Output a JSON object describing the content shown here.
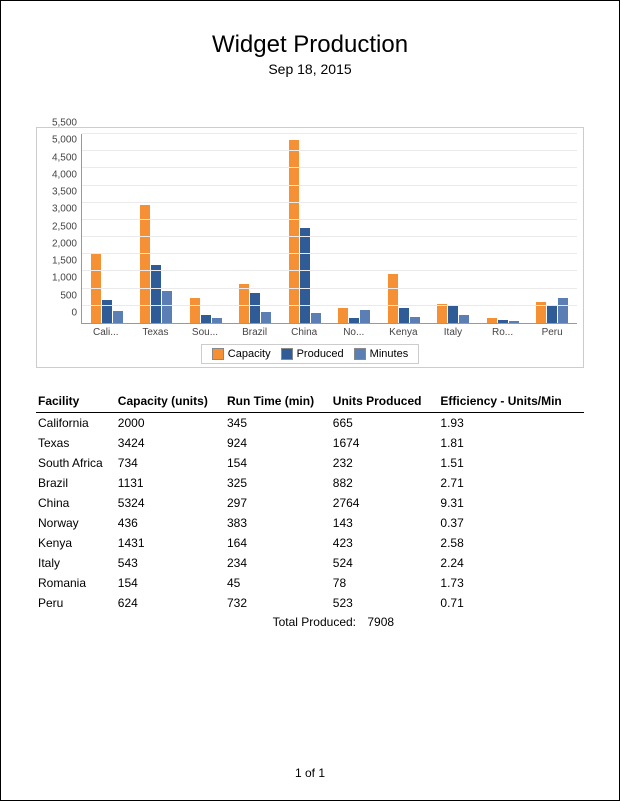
{
  "title": "Widget Production",
  "subtitle": "Sep 18, 2015",
  "chart": {
    "type": "bar",
    "y_max": 5500,
    "y_ticks": [
      0,
      500,
      1000,
      1500,
      2000,
      2500,
      3000,
      3500,
      4000,
      4500,
      5000,
      5500
    ],
    "y_tick_labels": [
      "0",
      "500",
      "1,000",
      "1,500",
      "2,000",
      "2,500",
      "3,000",
      "3,500",
      "4,000",
      "4,500",
      "5,000",
      "5,500"
    ],
    "series": [
      {
        "name": "Capacity",
        "color": "#f59134"
      },
      {
        "name": "Produced",
        "color": "#2f5b96"
      },
      {
        "name": "Minutes",
        "color": "#5b7fb5"
      }
    ],
    "categories": [
      "Cali...",
      "Texas",
      "Sou...",
      "Brazil",
      "China",
      "No...",
      "Kenya",
      "Italy",
      "Ro...",
      "Peru"
    ],
    "data": {
      "Capacity": [
        2000,
        3424,
        734,
        1131,
        5324,
        436,
        1431,
        543,
        154,
        624
      ],
      "Produced": [
        665,
        1674,
        232,
        882,
        2764,
        143,
        423,
        524,
        78,
        523
      ],
      "Minutes": [
        345,
        924,
        154,
        325,
        297,
        383,
        164,
        234,
        45,
        732
      ]
    },
    "grid_color": "#eaeaea",
    "axis_color": "#999999",
    "label_fontsize": 10
  },
  "table": {
    "columns": [
      "Facility",
      "Capacity (units)",
      "Run Time (min)",
      "Units Produced",
      "Efficiency - Units/Min"
    ],
    "rows": [
      [
        "California",
        "2000",
        "345",
        "665",
        "1.93"
      ],
      [
        "Texas",
        "3424",
        "924",
        "1674",
        "1.81"
      ],
      [
        "South Africa",
        "734",
        "154",
        "232",
        "1.51"
      ],
      [
        "Brazil",
        "1131",
        "325",
        "882",
        "2.71"
      ],
      [
        "China",
        "5324",
        "297",
        "2764",
        "9.31"
      ],
      [
        "Norway",
        "436",
        "383",
        "143",
        "0.37"
      ],
      [
        "Kenya",
        "1431",
        "164",
        "423",
        "2.58"
      ],
      [
        "Italy",
        "543",
        "234",
        "524",
        "2.24"
      ],
      [
        "Romania",
        "154",
        "45",
        "78",
        "1.73"
      ],
      [
        "Peru",
        "624",
        "732",
        "523",
        "0.71"
      ]
    ],
    "total_label": "Total Produced:",
    "total_value": "7908"
  },
  "footer": "1 of 1"
}
